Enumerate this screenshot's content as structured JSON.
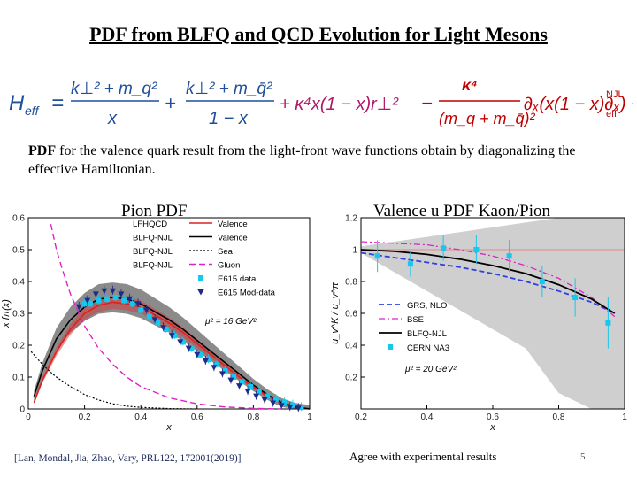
{
  "slide": {
    "title": "PDF from BLFQ and QCD Evolution for Light Mesons",
    "description_bold": "PDF",
    "description_rest": " for the valence quark result from the light-front wave functions obtain by diagonalizing the effective Hamiltonian.",
    "citation": "[Lan, Mondal, Jia, Zhao, Vary, PRL122, 172001(2019)]",
    "note": "Agree with experimental results",
    "page_number": "5"
  },
  "formula": {
    "lhs": "H",
    "lhs_sub": "eff",
    "t1_num": "k⊥² + m_q²",
    "t1_den": "x",
    "t2_num": "k⊥² + m_q̄²",
    "t2_den": "1 − x",
    "t3": "+ κ⁴x(1 − x)r⊥²",
    "t4_num": "κ⁴",
    "t4_den": "(m_q + m_q̄)²",
    "t5": "∂ₓ(x(1 − x)∂ₓ) + H",
    "t6_sup": "NJL",
    "t6_sub": "eff"
  },
  "colors": {
    "formula_blue": "#1f4e9a",
    "formula_magenta": "#b0186a",
    "formula_red": "#c00000",
    "band_gray": "#8c8c8c",
    "light_band": "#cfcfcf",
    "cyan": "#14c8f0",
    "navy": "#1e2a8c",
    "red": "#e02020",
    "magenta": "#e020c8",
    "blue": "#3040e0"
  },
  "chart_data": [
    {
      "type": "line",
      "panel_title": "Pion PDF",
      "xlabel": "x",
      "ylabel": "x fπ(x)",
      "xlim": [
        0,
        1
      ],
      "ylim": [
        0,
        0.6
      ],
      "xticks": [
        "0",
        "0.2",
        "0.4",
        "0.6",
        "0.8",
        "1"
      ],
      "xtick_values": [
        0,
        0.2,
        0.4,
        0.6,
        0.8,
        1
      ],
      "yticks": [
        "0",
        "0.1",
        "0.2",
        "0.3",
        "0.4",
        "0.5",
        "0.6"
      ],
      "ytick_values": [
        0,
        0.1,
        0.2,
        0.3,
        0.4,
        0.5,
        0.6
      ],
      "annotation": "μ² = 16 GeV²",
      "legend": [
        {
          "group": "LFHQCD",
          "label": "Valence",
          "style": "red-solid"
        },
        {
          "group": "BLFQ-NJL",
          "label": "Valence",
          "style": "black-solid"
        },
        {
          "group": "BLFQ-NJL",
          "label": "Sea",
          "style": "black-dotted"
        },
        {
          "group": "BLFQ-NJL",
          "label": "Gluon",
          "style": "magenta-dashed"
        },
        {
          "group": "",
          "label": "E615 data",
          "style": "cyan-square"
        },
        {
          "group": "",
          "label": "E615 Mod-data",
          "style": "navy-triangle"
        }
      ],
      "series": [
        {
          "name": "LFHQCD Valence",
          "x": [
            0.02,
            0.05,
            0.1,
            0.15,
            0.2,
            0.25,
            0.3,
            0.35,
            0.4,
            0.45,
            0.5,
            0.55,
            0.6,
            0.65,
            0.7,
            0.75,
            0.8,
            0.85,
            0.9,
            0.95,
            1.0
          ],
          "y": [
            0.02,
            0.09,
            0.18,
            0.25,
            0.3,
            0.325,
            0.335,
            0.33,
            0.32,
            0.295,
            0.27,
            0.24,
            0.205,
            0.17,
            0.135,
            0.1,
            0.068,
            0.04,
            0.018,
            0.005,
            0
          ]
        },
        {
          "name": "BLFQ-NJL Valence",
          "x": [
            0.02,
            0.05,
            0.1,
            0.15,
            0.2,
            0.25,
            0.3,
            0.35,
            0.4,
            0.45,
            0.5,
            0.55,
            0.6,
            0.65,
            0.7,
            0.75,
            0.8,
            0.85,
            0.9,
            0.95,
            1.0
          ],
          "y": [
            0.04,
            0.12,
            0.22,
            0.28,
            0.32,
            0.345,
            0.35,
            0.345,
            0.33,
            0.305,
            0.28,
            0.25,
            0.215,
            0.18,
            0.145,
            0.11,
            0.075,
            0.045,
            0.02,
            0.006,
            0
          ]
        },
        {
          "name": "BLFQ-NJL Sea",
          "x": [
            0.01,
            0.03,
            0.05,
            0.08,
            0.1,
            0.15,
            0.2,
            0.25,
            0.3,
            0.35,
            0.4,
            0.5,
            0.6
          ],
          "y": [
            0.18,
            0.16,
            0.14,
            0.115,
            0.1,
            0.07,
            0.045,
            0.028,
            0.016,
            0.009,
            0.005,
            0.001,
            0
          ]
        },
        {
          "name": "BLFQ-NJL Gluon",
          "x": [
            0.08,
            0.1,
            0.12,
            0.15,
            0.2,
            0.25,
            0.3,
            0.35,
            0.4,
            0.5,
            0.6,
            0.7,
            0.8,
            0.9
          ],
          "y": [
            0.58,
            0.5,
            0.44,
            0.36,
            0.26,
            0.19,
            0.14,
            0.1,
            0.07,
            0.035,
            0.016,
            0.006,
            0.002,
            0
          ]
        },
        {
          "name": "E615 data",
          "x": [
            0.2,
            0.22,
            0.25,
            0.28,
            0.31,
            0.34,
            0.37,
            0.4,
            0.43,
            0.46,
            0.49,
            0.52,
            0.55,
            0.58,
            0.61,
            0.64,
            0.67,
            0.7,
            0.73,
            0.76,
            0.79,
            0.82,
            0.85,
            0.88,
            0.91,
            0.94,
            0.97
          ],
          "y": [
            0.33,
            0.33,
            0.34,
            0.345,
            0.35,
            0.34,
            0.33,
            0.31,
            0.29,
            0.27,
            0.25,
            0.23,
            0.21,
            0.19,
            0.17,
            0.155,
            0.14,
            0.12,
            0.1,
            0.085,
            0.07,
            0.055,
            0.04,
            0.03,
            0.02,
            0.012,
            0.005
          ]
        },
        {
          "name": "E615 Mod-data",
          "x": [
            0.18,
            0.21,
            0.24,
            0.27,
            0.3,
            0.33,
            0.36,
            0.39,
            0.42,
            0.45,
            0.48,
            0.51,
            0.54,
            0.57,
            0.6,
            0.63,
            0.66,
            0.69,
            0.72,
            0.75,
            0.78,
            0.81,
            0.84,
            0.87,
            0.9,
            0.93,
            0.96
          ],
          "y": [
            0.32,
            0.34,
            0.36,
            0.37,
            0.37,
            0.36,
            0.345,
            0.33,
            0.31,
            0.28,
            0.255,
            0.23,
            0.21,
            0.19,
            0.17,
            0.15,
            0.13,
            0.11,
            0.09,
            0.072,
            0.055,
            0.04,
            0.028,
            0.018,
            0.01,
            0.005,
            0.002
          ]
        }
      ]
    },
    {
      "type": "line",
      "panel_title": "Valence u PDF Kaon/Pion",
      "xlabel": "x",
      "ylabel": "u_v^K / u_v^π",
      "xlim": [
        0.2,
        1.0
      ],
      "ylim": [
        0,
        1.2
      ],
      "xticks": [
        "0.2",
        "0.4",
        "0.6",
        "0.8",
        "1"
      ],
      "xtick_values": [
        0.2,
        0.4,
        0.6,
        0.8,
        1.0
      ],
      "yticks": [
        "0.2",
        "0.4",
        "0.6",
        "0.8",
        "1",
        "1.2"
      ],
      "ytick_values": [
        0.2,
        0.4,
        0.6,
        0.8,
        1.0,
        1.2
      ],
      "annotation": "μ² = 20 GeV²",
      "legend": [
        {
          "label": "GRS, NLO",
          "style": "blue-dashed"
        },
        {
          "label": "BSE",
          "style": "magenta-dashdot"
        },
        {
          "label": "BLFQ-NJL",
          "style": "black-solid"
        },
        {
          "label": "CERN NA3",
          "style": "cyan-square"
        }
      ],
      "series": [
        {
          "name": "GRS, NLO",
          "x": [
            0.2,
            0.3,
            0.4,
            0.5,
            0.6,
            0.7,
            0.8,
            0.9,
            0.97
          ],
          "y": [
            0.98,
            0.95,
            0.92,
            0.89,
            0.85,
            0.8,
            0.74,
            0.67,
            0.6
          ]
        },
        {
          "name": "BSE",
          "x": [
            0.2,
            0.3,
            0.4,
            0.5,
            0.6,
            0.7,
            0.8,
            0.9,
            0.97
          ],
          "y": [
            1.05,
            1.04,
            1.03,
            1.0,
            0.96,
            0.9,
            0.82,
            0.7,
            0.58
          ]
        },
        {
          "name": "BLFQ-NJL",
          "x": [
            0.2,
            0.3,
            0.4,
            0.5,
            0.6,
            0.7,
            0.8,
            0.9,
            0.97
          ],
          "y": [
            1.0,
            0.99,
            0.97,
            0.94,
            0.9,
            0.85,
            0.78,
            0.69,
            0.6
          ]
        },
        {
          "name": "CERN NA3",
          "x": [
            0.25,
            0.35,
            0.45,
            0.55,
            0.65,
            0.75,
            0.85,
            0.95
          ],
          "y": [
            0.96,
            0.91,
            1.01,
            1.0,
            0.96,
            0.8,
            0.7,
            0.54
          ],
          "err": [
            0.1,
            0.08,
            0.08,
            0.09,
            0.1,
            0.1,
            0.12,
            0.16
          ]
        }
      ]
    }
  ]
}
